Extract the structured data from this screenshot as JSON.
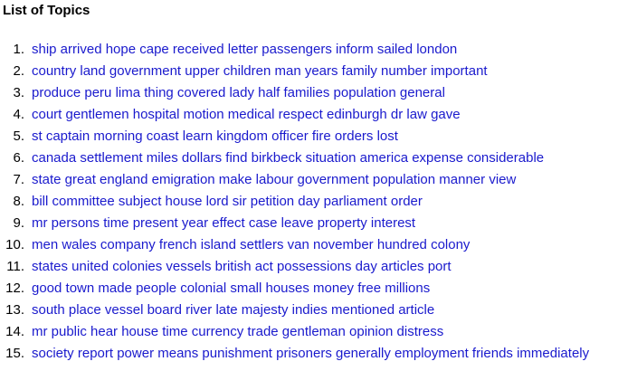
{
  "title": "List of Topics",
  "link_color": "#1a1acd",
  "topics": [
    {
      "num": "1.",
      "label": "ship arrived hope cape received letter passengers inform sailed london"
    },
    {
      "num": "2.",
      "label": "country land government upper children man years family number important"
    },
    {
      "num": "3.",
      "label": "produce peru lima thing covered lady half families population general"
    },
    {
      "num": "4.",
      "label": "court gentlemen hospital motion medical respect edinburgh dr law gave"
    },
    {
      "num": "5.",
      "label": "st captain morning coast learn kingdom officer fire orders lost"
    },
    {
      "num": "6.",
      "label": "canada settlement miles dollars find birkbeck situation america expense considerable"
    },
    {
      "num": "7.",
      "label": "state great england emigration make labour government population manner view"
    },
    {
      "num": "8.",
      "label": "bill committee subject house lord sir petition day parliament order"
    },
    {
      "num": "9.",
      "label": "mr persons time present year effect case leave property interest"
    },
    {
      "num": "10.",
      "label": "men wales company french island settlers van november hundred colony"
    },
    {
      "num": "11.",
      "label": "states united colonies vessels british act possessions day articles port"
    },
    {
      "num": "12.",
      "label": "good town made people colonial small houses money free millions"
    },
    {
      "num": "13.",
      "label": "south place vessel board river late majesty indies mentioned article"
    },
    {
      "num": "14.",
      "label": "mr public hear house time currency trade gentleman opinion distress"
    },
    {
      "num": "15.",
      "label": "society report power means punishment prisoners generally employment friends immediately"
    }
  ]
}
